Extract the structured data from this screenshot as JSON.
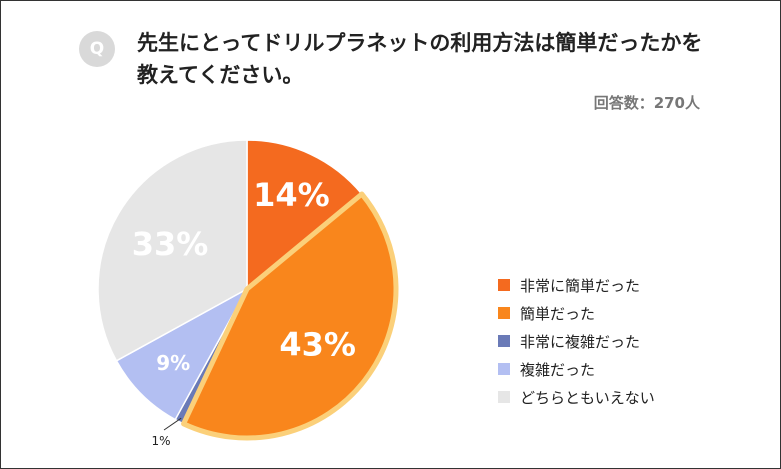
{
  "badge": "Q",
  "question_line1": "先生にとってドリルプラネットの利用方法は簡単だったかを",
  "question_line2": "教えてください。",
  "respondents": "回答数：270人",
  "chart_data": {
    "type": "pie",
    "title": "先生にとってドリルプラネットの利用方法は簡単だったかを教えてください。",
    "categories": [
      "非常に簡単だった",
      "簡単だった",
      "非常に複雑だった",
      "複雑だった",
      "どちらともいえない"
    ],
    "values": [
      14,
      43,
      1,
      9,
      33
    ],
    "labels": [
      "14%",
      "43%",
      "1%",
      "9%",
      "33%"
    ],
    "colors": [
      "#f46a1f",
      "#f9861c",
      "#6a7ab7",
      "#b3bff2",
      "#e6e6e6"
    ],
    "highlight": "簡単だった",
    "highlight_outline": "#fbd07a",
    "legend_position": "right"
  }
}
